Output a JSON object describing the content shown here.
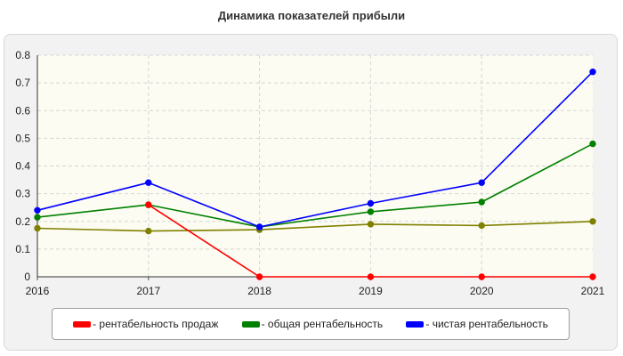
{
  "chart_data": {
    "type": "line",
    "title": "Динамика показателей прибыли",
    "xlabel": "",
    "ylabel": "",
    "categories": [
      "2016",
      "2017",
      "2018",
      "2019",
      "2020",
      "2021"
    ],
    "ylim": [
      0,
      0.8
    ],
    "yticks": [
      "0",
      "0.1",
      "0.2",
      "0.3",
      "0.4",
      "0.5",
      "0.6",
      "0.7",
      "0.8"
    ],
    "grid": true,
    "legend_position": "bottom",
    "series": [
      {
        "name": "- рентабельность продаж",
        "color": "#ff0000",
        "values": [
          null,
          0.26,
          0.0,
          0.0,
          0.0,
          0.0
        ]
      },
      {
        "name": "- общая рентабельность",
        "color": "#008000",
        "values": [
          0.215,
          0.26,
          0.18,
          0.235,
          0.27,
          0.48
        ]
      },
      {
        "name": "- чистая рентабельность",
        "color": "#0000ff",
        "values": [
          0.24,
          0.34,
          0.18,
          0.265,
          0.34,
          0.74
        ]
      },
      {
        "name": "",
        "color": "#808000",
        "values": [
          0.175,
          0.165,
          0.17,
          0.19,
          0.185,
          0.2
        ]
      }
    ]
  }
}
